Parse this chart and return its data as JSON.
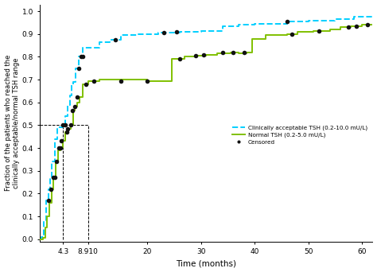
{
  "xlabel": "Time (months)",
  "ylabel": "Fraction of the patients who reached the\nclinically acceptable/normal TSH range",
  "xlim": [
    0,
    62
  ],
  "ylim": [
    -0.01,
    1.03
  ],
  "yticks": [
    0.0,
    0.1,
    0.2,
    0.3,
    0.4,
    0.5,
    0.6,
    0.7,
    0.8,
    0.9,
    1.0
  ],
  "xticks": [
    4.3,
    8.91,
    20,
    30,
    40,
    50,
    60
  ],
  "xtick_labels": [
    "4.3",
    "8.910",
    "20",
    "30",
    "40",
    "50",
    "60"
  ],
  "vline1_x": 4.3,
  "vline2_x": 8.91,
  "hline_y": 0.5,
  "color_cyan": "#00CFFF",
  "color_green": "#80C000",
  "color_censor": "#111111",
  "legend_entries": [
    "Clinically acceptable TSH (0.2-10.0 mU/L)",
    "Normal TSH (0.2-5.0 mU/L)",
    "Censored"
  ],
  "cyan_steps": [
    [
      0.0,
      0.0
    ],
    [
      0.3,
      0.0
    ],
    [
      0.3,
      0.01
    ],
    [
      0.7,
      0.01
    ],
    [
      0.7,
      0.08
    ],
    [
      1.1,
      0.08
    ],
    [
      1.1,
      0.17
    ],
    [
      1.5,
      0.17
    ],
    [
      1.5,
      0.22
    ],
    [
      1.8,
      0.22
    ],
    [
      1.8,
      0.27
    ],
    [
      2.2,
      0.27
    ],
    [
      2.2,
      0.34
    ],
    [
      2.7,
      0.34
    ],
    [
      2.7,
      0.44
    ],
    [
      3.2,
      0.44
    ],
    [
      3.2,
      0.49
    ],
    [
      4.3,
      0.49
    ],
    [
      4.3,
      0.5
    ],
    [
      4.7,
      0.5
    ],
    [
      4.7,
      0.54
    ],
    [
      5.1,
      0.54
    ],
    [
      5.1,
      0.59
    ],
    [
      5.5,
      0.59
    ],
    [
      5.5,
      0.63
    ],
    [
      5.9,
      0.63
    ],
    [
      5.9,
      0.68
    ],
    [
      6.2,
      0.68
    ],
    [
      6.2,
      0.69
    ],
    [
      6.6,
      0.69
    ],
    [
      6.6,
      0.75
    ],
    [
      7.2,
      0.75
    ],
    [
      7.2,
      0.8
    ],
    [
      8.0,
      0.8
    ],
    [
      8.0,
      0.84
    ],
    [
      8.91,
      0.84
    ],
    [
      8.91,
      0.84
    ],
    [
      11.0,
      0.84
    ],
    [
      11.0,
      0.865
    ],
    [
      13.0,
      0.865
    ],
    [
      13.0,
      0.875
    ],
    [
      15.0,
      0.875
    ],
    [
      15.0,
      0.895
    ],
    [
      18.0,
      0.895
    ],
    [
      18.0,
      0.9
    ],
    [
      22.0,
      0.9
    ],
    [
      22.0,
      0.905
    ],
    [
      26.0,
      0.905
    ],
    [
      26.0,
      0.91
    ],
    [
      30.0,
      0.91
    ],
    [
      30.0,
      0.915
    ],
    [
      34.0,
      0.915
    ],
    [
      34.0,
      0.935
    ],
    [
      37.0,
      0.935
    ],
    [
      37.0,
      0.94
    ],
    [
      40.0,
      0.94
    ],
    [
      40.0,
      0.945
    ],
    [
      46.0,
      0.945
    ],
    [
      46.0,
      0.955
    ],
    [
      50.0,
      0.955
    ],
    [
      50.0,
      0.96
    ],
    [
      55.0,
      0.96
    ],
    [
      55.0,
      0.965
    ],
    [
      58.5,
      0.965
    ],
    [
      58.5,
      0.975
    ],
    [
      62.0,
      0.975
    ]
  ],
  "green_steps": [
    [
      0.0,
      0.0
    ],
    [
      0.5,
      0.0
    ],
    [
      0.5,
      0.005
    ],
    [
      0.9,
      0.005
    ],
    [
      0.9,
      0.05
    ],
    [
      1.3,
      0.05
    ],
    [
      1.3,
      0.1
    ],
    [
      1.7,
      0.1
    ],
    [
      1.7,
      0.16
    ],
    [
      2.1,
      0.16
    ],
    [
      2.1,
      0.22
    ],
    [
      2.5,
      0.22
    ],
    [
      2.5,
      0.27
    ],
    [
      2.9,
      0.27
    ],
    [
      2.9,
      0.34
    ],
    [
      3.4,
      0.34
    ],
    [
      3.4,
      0.39
    ],
    [
      3.8,
      0.39
    ],
    [
      3.8,
      0.4
    ],
    [
      4.3,
      0.4
    ],
    [
      4.3,
      0.43
    ],
    [
      4.7,
      0.43
    ],
    [
      4.7,
      0.47
    ],
    [
      5.2,
      0.47
    ],
    [
      5.2,
      0.485
    ],
    [
      5.7,
      0.485
    ],
    [
      5.7,
      0.5
    ],
    [
      6.1,
      0.5
    ],
    [
      6.1,
      0.565
    ],
    [
      6.5,
      0.565
    ],
    [
      6.5,
      0.58
    ],
    [
      6.9,
      0.58
    ],
    [
      6.9,
      0.6
    ],
    [
      7.4,
      0.6
    ],
    [
      7.4,
      0.625
    ],
    [
      7.9,
      0.625
    ],
    [
      7.9,
      0.68
    ],
    [
      8.91,
      0.68
    ],
    [
      8.91,
      0.695
    ],
    [
      11.0,
      0.695
    ],
    [
      11.0,
      0.7
    ],
    [
      20.0,
      0.7
    ],
    [
      20.0,
      0.695
    ],
    [
      24.5,
      0.695
    ],
    [
      24.5,
      0.79
    ],
    [
      27.0,
      0.79
    ],
    [
      27.0,
      0.8
    ],
    [
      29.0,
      0.8
    ],
    [
      29.0,
      0.805
    ],
    [
      31.0,
      0.805
    ],
    [
      31.0,
      0.81
    ],
    [
      33.0,
      0.81
    ],
    [
      33.0,
      0.815
    ],
    [
      35.5,
      0.815
    ],
    [
      35.5,
      0.82
    ],
    [
      37.0,
      0.82
    ],
    [
      37.0,
      0.815
    ],
    [
      38.5,
      0.815
    ],
    [
      38.5,
      0.82
    ],
    [
      39.5,
      0.82
    ],
    [
      39.5,
      0.88
    ],
    [
      42.0,
      0.88
    ],
    [
      42.0,
      0.895
    ],
    [
      46.0,
      0.895
    ],
    [
      46.0,
      0.9
    ],
    [
      48.0,
      0.9
    ],
    [
      48.0,
      0.91
    ],
    [
      51.0,
      0.91
    ],
    [
      51.0,
      0.915
    ],
    [
      54.0,
      0.915
    ],
    [
      54.0,
      0.92
    ],
    [
      56.0,
      0.92
    ],
    [
      56.0,
      0.93
    ],
    [
      58.0,
      0.93
    ],
    [
      58.0,
      0.935
    ],
    [
      60.0,
      0.935
    ],
    [
      60.0,
      0.94
    ],
    [
      62.0,
      0.94
    ]
  ],
  "censors": [
    [
      1.5,
      0.17
    ],
    [
      2.0,
      0.22
    ],
    [
      2.5,
      0.27
    ],
    [
      2.8,
      0.27
    ],
    [
      3.0,
      0.34
    ],
    [
      3.5,
      0.4
    ],
    [
      3.8,
      0.4
    ],
    [
      4.0,
      0.43
    ],
    [
      4.3,
      0.5
    ],
    [
      4.7,
      0.5
    ],
    [
      5.0,
      0.47
    ],
    [
      5.2,
      0.485
    ],
    [
      5.7,
      0.5
    ],
    [
      6.0,
      0.565
    ],
    [
      6.5,
      0.58
    ],
    [
      6.9,
      0.625
    ],
    [
      7.2,
      0.75
    ],
    [
      7.6,
      0.8
    ],
    [
      8.0,
      0.8
    ],
    [
      8.5,
      0.68
    ],
    [
      10.0,
      0.695
    ],
    [
      14.0,
      0.875
    ],
    [
      15.0,
      0.695
    ],
    [
      20.0,
      0.695
    ],
    [
      23.0,
      0.905
    ],
    [
      25.5,
      0.91
    ],
    [
      26.0,
      0.79
    ],
    [
      29.0,
      0.805
    ],
    [
      30.5,
      0.81
    ],
    [
      34.0,
      0.818
    ],
    [
      36.0,
      0.818
    ],
    [
      38.0,
      0.82
    ],
    [
      46.0,
      0.955
    ],
    [
      47.0,
      0.9
    ],
    [
      52.0,
      0.915
    ],
    [
      57.5,
      0.93
    ],
    [
      59.0,
      0.935
    ],
    [
      61.0,
      0.94
    ]
  ]
}
